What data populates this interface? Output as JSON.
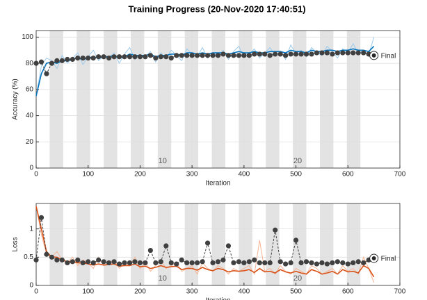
{
  "title": "Training Progress (20-Nov-2020 17:40:51)",
  "chart_data": [
    {
      "type": "line",
      "ylabel": "Accuracy (%)",
      "xlabel": "Iteration",
      "xlim": [
        0,
        700
      ],
      "xticks": [
        0,
        100,
        200,
        300,
        400,
        500,
        600,
        700
      ],
      "ylim": [
        0,
        105
      ],
      "yticks": [
        0,
        20,
        40,
        60,
        80,
        100
      ],
      "grid": true,
      "epoch_bands": [
        [
          26,
          52
        ],
        [
          78,
          104
        ],
        [
          130,
          156
        ],
        [
          182,
          208
        ],
        [
          234,
          260
        ],
        [
          286,
          312
        ],
        [
          338,
          364
        ],
        [
          390,
          416
        ],
        [
          442,
          468
        ],
        [
          494,
          520
        ],
        [
          546,
          572
        ],
        [
          598,
          624
        ]
      ],
      "annotations": [
        {
          "text": "10",
          "x": 235
        },
        {
          "text": "20",
          "x": 495
        }
      ],
      "final_label": "Final",
      "x": [
        0,
        10,
        20,
        30,
        40,
        50,
        60,
        70,
        80,
        90,
        100,
        110,
        120,
        130,
        140,
        150,
        160,
        170,
        180,
        190,
        200,
        210,
        220,
        230,
        240,
        250,
        260,
        270,
        280,
        290,
        300,
        310,
        320,
        330,
        340,
        350,
        360,
        370,
        380,
        390,
        400,
        410,
        420,
        430,
        440,
        450,
        460,
        470,
        480,
        490,
        500,
        510,
        520,
        530,
        540,
        550,
        560,
        570,
        580,
        590,
        600,
        610,
        620,
        630,
        640,
        650
      ],
      "series": [
        {
          "color": "#9ccbed",
          "style": "line",
          "width": 1,
          "values": [
            55,
            78,
            84,
            82,
            76,
            86,
            80,
            84,
            88,
            79,
            85,
            90,
            82,
            86,
            84,
            88,
            80,
            87,
            92,
            83,
            86,
            85,
            89,
            81,
            88,
            84,
            90,
            86,
            82,
            91,
            87,
            85,
            92,
            84,
            88,
            86,
            90,
            83,
            89,
            93,
            85,
            87,
            91,
            84,
            88,
            92,
            86,
            89,
            83,
            94,
            87,
            90,
            85,
            92,
            88,
            86,
            93,
            89,
            84,
            91,
            88,
            95,
            87,
            90,
            86,
            100
          ]
        },
        {
          "color": "#0072bd",
          "style": "line",
          "width": 1.6,
          "values": [
            55,
            72,
            80,
            81,
            80,
            82,
            82,
            83,
            84,
            83,
            84,
            85,
            84,
            85,
            85,
            86,
            84,
            85,
            87,
            86,
            86,
            86,
            87,
            85,
            86,
            86,
            87,
            87,
            86,
            88,
            88,
            87,
            88,
            87,
            88,
            88,
            88,
            87,
            88,
            89,
            88,
            88,
            89,
            88,
            88,
            89,
            89,
            89,
            88,
            90,
            89,
            89,
            88,
            90,
            89,
            89,
            90,
            90,
            89,
            90,
            90,
            91,
            90,
            90,
            89,
            93
          ]
        },
        {
          "color": "#404040",
          "style": "dots",
          "width": 1,
          "values": [
            80,
            81,
            72,
            80,
            82,
            82,
            83,
            83,
            84,
            84,
            84,
            84,
            85,
            85,
            84,
            85,
            85,
            85,
            85,
            85,
            85,
            85,
            86,
            84,
            85,
            85,
            84,
            86,
            86,
            86,
            86,
            86,
            86,
            86,
            86,
            86,
            87,
            86,
            86,
            86,
            86,
            86,
            87,
            87,
            87,
            86,
            87,
            87,
            86,
            87,
            87,
            87,
            87,
            87,
            88,
            88,
            88,
            87,
            88,
            88,
            88,
            88,
            88,
            88,
            87,
            86
          ]
        }
      ]
    },
    {
      "type": "line",
      "ylabel": "Loss",
      "xlabel": "Iteration",
      "xlim": [
        0,
        700
      ],
      "xticks": [
        0,
        100,
        200,
        300,
        400,
        500,
        600,
        700
      ],
      "ylim": [
        0,
        1.45
      ],
      "yticks": [
        0,
        0.5,
        1
      ],
      "grid": true,
      "epoch_bands": [
        [
          26,
          52
        ],
        [
          78,
          104
        ],
        [
          130,
          156
        ],
        [
          182,
          208
        ],
        [
          234,
          260
        ],
        [
          286,
          312
        ],
        [
          338,
          364
        ],
        [
          390,
          416
        ],
        [
          442,
          468
        ],
        [
          494,
          520
        ],
        [
          546,
          572
        ],
        [
          598,
          624
        ]
      ],
      "annotations": [
        {
          "text": "10",
          "x": 235
        },
        {
          "text": "20",
          "x": 495
        }
      ],
      "final_label": "Final",
      "x": [
        0,
        10,
        20,
        30,
        40,
        50,
        60,
        70,
        80,
        90,
        100,
        110,
        120,
        130,
        140,
        150,
        160,
        170,
        180,
        190,
        200,
        210,
        220,
        230,
        240,
        250,
        260,
        270,
        280,
        290,
        300,
        310,
        320,
        330,
        340,
        350,
        360,
        370,
        380,
        390,
        400,
        410,
        420,
        430,
        440,
        450,
        460,
        470,
        480,
        490,
        500,
        510,
        520,
        530,
        540,
        550,
        560,
        570,
        580,
        590,
        600,
        610,
        620,
        630,
        640,
        650
      ],
      "series": [
        {
          "color": "#f5b394",
          "style": "line",
          "width": 1,
          "values": [
            1.4,
            0.9,
            0.55,
            0.5,
            0.6,
            0.45,
            0.4,
            0.5,
            0.35,
            0.45,
            0.4,
            0.3,
            0.5,
            0.35,
            0.4,
            0.45,
            0.3,
            0.4,
            0.35,
            0.5,
            0.3,
            0.4,
            0.25,
            0.35,
            0.45,
            0.3,
            0.35,
            0.4,
            0.25,
            0.3,
            0.35,
            0.2,
            0.4,
            0.3,
            0.25,
            0.35,
            0.3,
            0.2,
            0.3,
            0.25,
            0.3,
            0.35,
            0.2,
            0.8,
            0.25,
            0.3,
            0.2,
            0.35,
            0.25,
            0.2,
            0.3,
            0.25,
            0.2,
            0.35,
            0.3,
            0.2,
            0.25,
            0.3,
            0.2,
            0.35,
            0.25,
            0.3,
            0.2,
            0.5,
            0.3,
            0.05
          ]
        },
        {
          "color": "#d95319",
          "style": "line",
          "width": 1.6,
          "values": [
            1.4,
            1.0,
            0.6,
            0.5,
            0.5,
            0.45,
            0.42,
            0.42,
            0.4,
            0.4,
            0.38,
            0.36,
            0.38,
            0.36,
            0.37,
            0.38,
            0.34,
            0.35,
            0.35,
            0.38,
            0.33,
            0.34,
            0.3,
            0.32,
            0.35,
            0.32,
            0.33,
            0.34,
            0.28,
            0.3,
            0.3,
            0.27,
            0.32,
            0.28,
            0.26,
            0.3,
            0.28,
            0.24,
            0.26,
            0.25,
            0.26,
            0.28,
            0.23,
            0.3,
            0.24,
            0.25,
            0.22,
            0.28,
            0.24,
            0.22,
            0.25,
            0.22,
            0.2,
            0.28,
            0.25,
            0.2,
            0.22,
            0.25,
            0.2,
            0.28,
            0.24,
            0.25,
            0.22,
            0.35,
            0.3,
            0.15
          ]
        },
        {
          "color": "#404040",
          "style": "dots",
          "width": 1,
          "values": [
            0.45,
            1.2,
            0.55,
            0.5,
            0.45,
            0.45,
            0.4,
            0.42,
            0.45,
            0.4,
            0.42,
            0.4,
            0.45,
            0.42,
            0.4,
            0.42,
            0.38,
            0.4,
            0.4,
            0.42,
            0.4,
            0.4,
            0.62,
            0.4,
            0.42,
            0.7,
            0.4,
            0.38,
            0.45,
            0.4,
            0.4,
            0.4,
            0.42,
            0.75,
            0.4,
            0.42,
            0.45,
            0.7,
            0.4,
            0.42,
            0.4,
            0.42,
            0.45,
            0.4,
            0.4,
            0.4,
            0.98,
            0.42,
            0.38,
            0.4,
            0.8,
            0.4,
            0.42,
            0.4,
            0.38,
            0.4,
            0.38,
            0.4,
            0.42,
            0.4,
            0.38,
            0.4,
            0.42,
            0.4,
            0.45,
            0.48
          ]
        }
      ]
    }
  ]
}
